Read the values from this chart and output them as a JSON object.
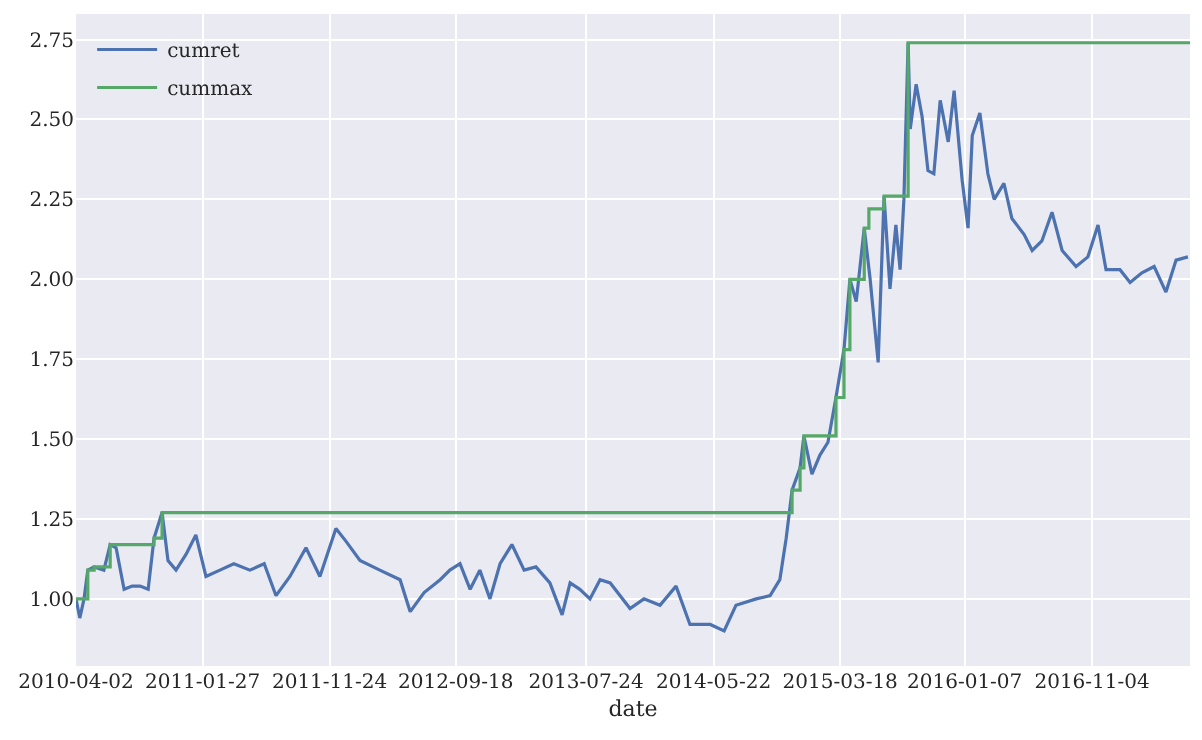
{
  "chart_data": {
    "type": "line",
    "xlabel": "date",
    "legend": "top left",
    "grid": true,
    "xlim": [
      "2010-04-02",
      "2017-06-24"
    ],
    "xticks": [
      "2010-04-02",
      "2011-01-27",
      "2011-11-24",
      "2012-09-18",
      "2013-07-24",
      "2014-05-22",
      "2015-03-18",
      "2016-01-07",
      "2016-11-04"
    ],
    "ylim": [
      0.79,
      2.83
    ],
    "yticks": [
      {
        "value": 1,
        "label": "1.00"
      },
      {
        "value": 1.25,
        "label": "1.25"
      },
      {
        "value": 1.5,
        "label": "1.50"
      },
      {
        "value": 1.75,
        "label": "1.75"
      },
      {
        "value": 2,
        "label": "2.00"
      },
      {
        "value": 2.25,
        "label": "2.25"
      },
      {
        "value": 2.5,
        "label": "2.50"
      },
      {
        "value": 2.75,
        "label": "2.75"
      }
    ],
    "series": [
      {
        "name": "cumret",
        "type": "line",
        "color": "#4c72b0",
        "x": [
          "2010-04-02",
          "2010-04-11",
          "2010-04-21",
          "2010-04-30",
          "2010-05-15",
          "2010-06-07",
          "2010-06-22",
          "2010-07-06",
          "2010-07-25",
          "2010-08-13",
          "2010-09-01",
          "2010-09-20",
          "2010-10-04",
          "2010-10-23",
          "2010-11-06",
          "2010-11-25",
          "2010-12-19",
          "2011-01-11",
          "2011-02-04",
          "2011-03-09",
          "2011-04-11",
          "2011-05-19",
          "2011-06-22",
          "2011-07-20",
          "2011-08-22",
          "2011-09-29",
          "2011-11-01",
          "2011-12-09",
          "2012-01-02",
          "2012-02-04",
          "2012-03-22",
          "2012-05-09",
          "2012-06-02",
          "2012-07-05",
          "2012-08-12",
          "2012-09-04",
          "2012-09-28",
          "2012-10-22",
          "2012-11-14",
          "2012-12-08",
          "2013-01-01",
          "2013-01-29",
          "2013-02-27",
          "2013-03-27",
          "2013-04-29",
          "2013-05-28",
          "2013-06-16",
          "2013-07-09",
          "2013-08-02",
          "2013-08-26",
          "2013-09-19",
          "2013-11-05",
          "2013-12-08",
          "2014-01-15",
          "2014-02-22",
          "2014-03-27",
          "2014-05-14",
          "2014-06-16",
          "2014-07-14",
          "2014-08-31",
          "2014-10-03",
          "2014-10-26",
          "2014-11-10",
          "2014-11-24",
          "2014-12-13",
          "2014-12-22",
          "2015-01-10",
          "2015-01-29",
          "2015-02-17",
          "2015-03-08",
          "2015-03-27",
          "2015-04-10",
          "2015-04-25",
          "2015-05-14",
          "2015-05-28",
          "2015-06-16",
          "2015-06-30",
          "2015-07-14",
          "2015-07-28",
          "2015-08-07",
          "2015-08-16",
          "2015-08-26",
          "2015-08-31",
          "2015-09-14",
          "2015-09-28",
          "2015-10-12",
          "2015-10-26",
          "2015-11-10",
          "2015-11-29",
          "2015-12-13",
          "2016-01-01",
          "2016-01-15",
          "2016-01-25",
          "2016-02-12",
          "2016-03-02",
          "2016-03-17",
          "2016-04-09",
          "2016-04-28",
          "2016-05-27",
          "2016-06-15",
          "2016-07-08",
          "2016-08-01",
          "2016-08-25",
          "2016-09-27",
          "2016-10-25",
          "2016-11-18",
          "2016-12-07",
          "2017-01-09",
          "2017-02-02",
          "2017-03-02",
          "2017-03-31",
          "2017-04-28",
          "2017-05-22",
          "2017-06-19"
        ],
        "values": [
          1.0,
          0.94,
          1.0,
          1.09,
          1.1,
          1.09,
          1.17,
          1.16,
          1.03,
          1.04,
          1.04,
          1.03,
          1.19,
          1.27,
          1.12,
          1.09,
          1.14,
          1.2,
          1.07,
          1.09,
          1.11,
          1.09,
          1.11,
          1.01,
          1.07,
          1.16,
          1.07,
          1.22,
          1.18,
          1.12,
          1.09,
          1.06,
          0.96,
          1.02,
          1.06,
          1.09,
          1.11,
          1.03,
          1.09,
          1.0,
          1.11,
          1.17,
          1.09,
          1.1,
          1.05,
          0.95,
          1.05,
          1.03,
          1.0,
          1.06,
          1.05,
          0.97,
          1.0,
          0.98,
          1.04,
          0.92,
          0.92,
          0.9,
          0.98,
          1.0,
          1.01,
          1.06,
          1.19,
          1.34,
          1.41,
          1.51,
          1.39,
          1.45,
          1.49,
          1.63,
          1.78,
          2.0,
          1.93,
          2.16,
          2.0,
          1.74,
          2.26,
          1.97,
          2.17,
          2.03,
          2.25,
          2.74,
          2.47,
          2.61,
          2.51,
          2.34,
          2.33,
          2.56,
          2.43,
          2.59,
          2.31,
          2.16,
          2.45,
          2.52,
          2.33,
          2.25,
          2.3,
          2.19,
          2.14,
          2.09,
          2.12,
          2.21,
          2.09,
          2.04,
          2.07,
          2.17,
          2.03,
          2.03,
          1.99,
          2.02,
          2.04,
          1.96,
          2.06,
          2.07
        ]
      },
      {
        "name": "cummax",
        "type": "step",
        "color": "#55a868",
        "x": [
          "2010-04-02",
          "2010-04-30",
          "2010-05-15",
          "2010-06-22",
          "2010-10-04",
          "2010-10-23",
          "2014-11-24",
          "2014-12-13",
          "2014-12-22",
          "2015-03-08",
          "2015-03-27",
          "2015-04-10",
          "2015-05-14",
          "2015-05-25",
          "2015-06-30",
          "2015-08-26",
          "2017-06-24"
        ],
        "values": [
          1.0,
          1.09,
          1.1,
          1.17,
          1.19,
          1.27,
          1.34,
          1.41,
          1.51,
          1.63,
          1.78,
          2.0,
          2.16,
          2.22,
          2.26,
          2.74,
          2.74
        ]
      }
    ]
  }
}
